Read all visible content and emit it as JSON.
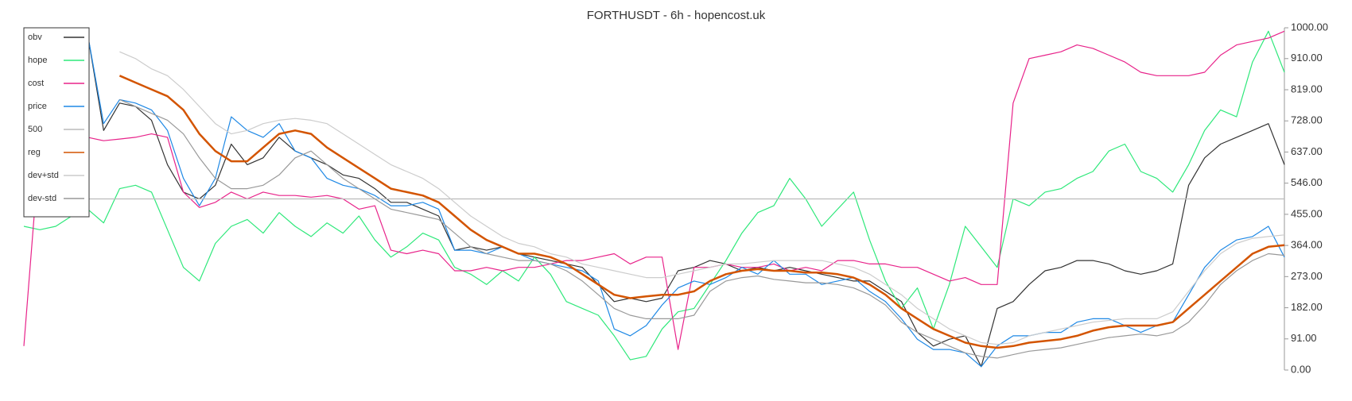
{
  "chart_data": {
    "type": "line",
    "title": "FORTHUSDT - 6h - hopencost.uk",
    "ylim": [
      0,
      1000
    ],
    "yticks": [
      {
        "value": 0,
        "label": "0.00"
      },
      {
        "value": 91,
        "label": "91.00"
      },
      {
        "value": 182,
        "label": "182.00"
      },
      {
        "value": 273,
        "label": "273.00"
      },
      {
        "value": 364,
        "label": "364.00"
      },
      {
        "value": 455,
        "label": "455.00"
      },
      {
        "value": 546,
        "label": "546.00"
      },
      {
        "value": 637,
        "label": "637.00"
      },
      {
        "value": 728,
        "label": "728.00"
      },
      {
        "value": 819,
        "label": "819.00"
      },
      {
        "value": 910,
        "label": "910.00"
      },
      {
        "value": 1000,
        "label": "1000.00"
      }
    ],
    "legend": "upper left",
    "series": [
      {
        "name": "obv",
        "color": "#333333",
        "values": [
          null,
          null,
          null,
          null,
          980,
          700,
          780,
          770,
          730,
          600,
          520,
          500,
          540,
          660,
          600,
          620,
          680,
          640,
          620,
          600,
          570,
          560,
          530,
          490,
          490,
          470,
          450,
          350,
          360,
          350,
          360,
          340,
          330,
          320,
          310,
          300,
          250,
          200,
          210,
          200,
          210,
          290,
          300,
          320,
          310,
          290,
          300,
          290,
          300,
          290,
          280,
          270,
          260,
          260,
          230,
          200,
          110,
          70,
          90,
          100,
          10,
          180,
          200,
          250,
          290,
          300,
          320,
          320,
          310,
          290,
          280,
          290,
          310,
          540,
          620,
          660,
          680,
          700,
          720,
          600
        ]
      },
      {
        "name": "hope",
        "color": "#2ee87a",
        "values": [
          420,
          410,
          420,
          450,
          470,
          430,
          530,
          540,
          520,
          410,
          300,
          260,
          370,
          420,
          440,
          400,
          460,
          420,
          390,
          430,
          400,
          450,
          380,
          330,
          360,
          400,
          380,
          300,
          280,
          250,
          290,
          260,
          330,
          280,
          200,
          180,
          160,
          100,
          30,
          40,
          120,
          170,
          180,
          250,
          320,
          400,
          460,
          480,
          560,
          500,
          420,
          470,
          520,
          380,
          260,
          180,
          240,
          120,
          250,
          420,
          360,
          300,
          500,
          480,
          520,
          530,
          560,
          580,
          640,
          660,
          580,
          560,
          520,
          600,
          700,
          760,
          740,
          900,
          990,
          870
        ]
      },
      {
        "name": "cost",
        "color": "#e8238a",
        "values": [
          70,
          660,
          670,
          680,
          680,
          670,
          675,
          680,
          690,
          680,
          520,
          475,
          490,
          520,
          500,
          520,
          510,
          510,
          505,
          510,
          500,
          470,
          480,
          350,
          340,
          350,
          340,
          290,
          290,
          300,
          290,
          300,
          300,
          310,
          320,
          320,
          330,
          340,
          310,
          330,
          330,
          60,
          300,
          300,
          310,
          300,
          300,
          310,
          290,
          300,
          290,
          320,
          320,
          310,
          310,
          300,
          300,
          280,
          260,
          270,
          250,
          250,
          780,
          910,
          920,
          930,
          950,
          940,
          920,
          900,
          870,
          860,
          860,
          860,
          870,
          920,
          950,
          960,
          970,
          990
        ]
      },
      {
        "name": "price",
        "color": "#1e88e5",
        "values": [
          null,
          null,
          null,
          null,
          980,
          720,
          790,
          780,
          760,
          700,
          560,
          480,
          560,
          740,
          700,
          680,
          720,
          640,
          620,
          560,
          540,
          530,
          510,
          480,
          480,
          490,
          470,
          350,
          350,
          340,
          360,
          340,
          320,
          310,
          300,
          290,
          260,
          120,
          100,
          130,
          190,
          240,
          260,
          250,
          270,
          300,
          280,
          320,
          280,
          280,
          250,
          260,
          270,
          230,
          200,
          150,
          90,
          60,
          60,
          50,
          10,
          70,
          100,
          100,
          110,
          110,
          140,
          150,
          150,
          130,
          110,
          130,
          140,
          220,
          300,
          350,
          380,
          390,
          420,
          330
        ]
      },
      {
        "name": "500",
        "color": "#bbbbbb",
        "values": [
          500,
          500,
          500,
          500,
          500,
          500,
          500,
          500,
          500,
          500,
          500,
          500,
          500,
          500,
          500,
          500,
          500,
          500,
          500,
          500,
          500,
          500,
          500,
          500,
          500,
          500,
          500,
          500,
          500,
          500,
          500,
          500,
          500,
          500,
          500,
          500,
          500,
          500,
          500,
          500,
          500,
          500,
          500,
          500,
          500,
          500,
          500,
          500,
          500,
          500,
          500,
          500,
          500,
          500,
          500,
          500,
          500,
          500,
          500,
          500,
          500,
          500,
          500,
          500,
          500,
          500,
          500,
          500,
          500,
          500,
          500,
          500,
          500,
          500,
          500,
          500,
          500,
          500,
          500,
          500
        ]
      },
      {
        "name": "reg",
        "color": "#d35400",
        "values": [
          null,
          null,
          null,
          null,
          null,
          null,
          860,
          840,
          820,
          800,
          760,
          690,
          640,
          610,
          610,
          650,
          690,
          700,
          690,
          650,
          620,
          590,
          560,
          530,
          520,
          510,
          490,
          450,
          410,
          380,
          360,
          340,
          340,
          330,
          310,
          280,
          250,
          220,
          210,
          215,
          220,
          220,
          230,
          260,
          280,
          290,
          295,
          290,
          290,
          285,
          285,
          280,
          270,
          250,
          220,
          180,
          150,
          120,
          100,
          80,
          70,
          65,
          70,
          80,
          85,
          90,
          100,
          115,
          125,
          130,
          130,
          130,
          140,
          180,
          220,
          260,
          300,
          340,
          360,
          365
        ]
      },
      {
        "name": "dev+std",
        "color": "#cccccc",
        "values": [
          null,
          null,
          null,
          null,
          null,
          null,
          930,
          910,
          880,
          860,
          820,
          770,
          720,
          690,
          700,
          720,
          730,
          735,
          730,
          720,
          690,
          660,
          630,
          600,
          580,
          560,
          530,
          490,
          450,
          420,
          390,
          370,
          360,
          340,
          330,
          310,
          300,
          290,
          280,
          270,
          270,
          280,
          290,
          300,
          310,
          310,
          315,
          320,
          320,
          320,
          320,
          310,
          300,
          280,
          250,
          220,
          180,
          150,
          120,
          100,
          80,
          75,
          80,
          100,
          110,
          120,
          130,
          140,
          145,
          150,
          150,
          150,
          170,
          230,
          290,
          340,
          370,
          385,
          390,
          395
        ]
      },
      {
        "name": "dev-std",
        "color": "#999999",
        "values": [
          null,
          null,
          null,
          null,
          null,
          null,
          790,
          770,
          750,
          730,
          690,
          620,
          560,
          530,
          530,
          540,
          570,
          620,
          640,
          600,
          560,
          530,
          500,
          470,
          460,
          450,
          440,
          400,
          360,
          340,
          330,
          320,
          320,
          310,
          290,
          260,
          220,
          180,
          160,
          150,
          150,
          150,
          160,
          230,
          260,
          270,
          275,
          265,
          260,
          255,
          255,
          250,
          240,
          220,
          190,
          140,
          110,
          90,
          70,
          50,
          40,
          35,
          45,
          55,
          60,
          65,
          75,
          85,
          95,
          100,
          105,
          100,
          110,
          140,
          190,
          250,
          290,
          320,
          340,
          335
        ]
      }
    ]
  }
}
